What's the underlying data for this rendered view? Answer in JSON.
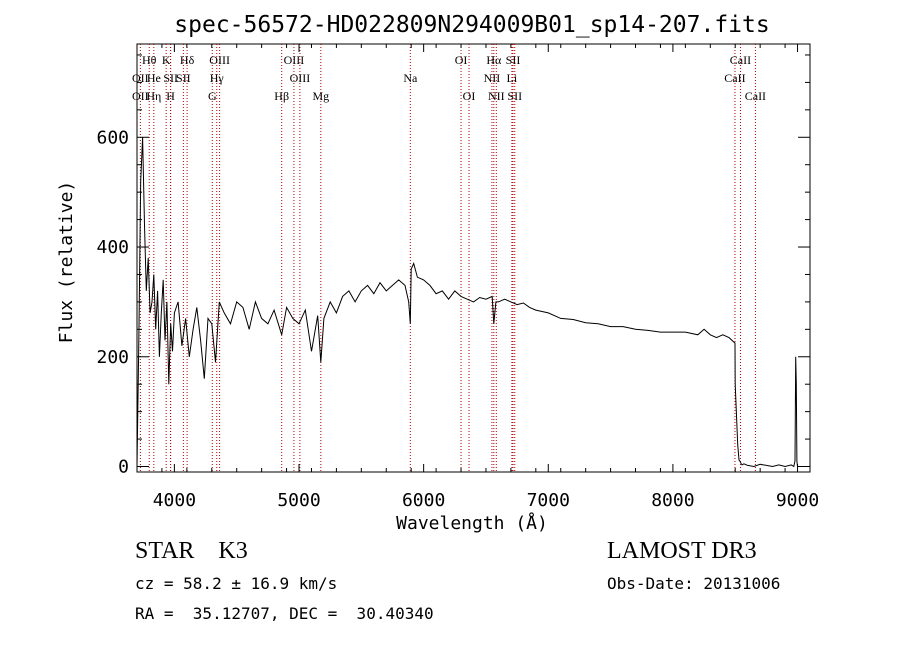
{
  "chart_data": {
    "type": "line",
    "title": "spec-56572-HD022809N294009B01_sp14-207.fits",
    "xlabel": "Wavelength (Å)",
    "ylabel": "Flux (relative)",
    "xlim": [
      3700,
      9100
    ],
    "ylim": [
      -10,
      770
    ],
    "xticks": [
      4000,
      5000,
      6000,
      7000,
      8000,
      9000
    ],
    "yticks": [
      0,
      200,
      400,
      600
    ],
    "series": [
      {
        "name": "flux",
        "x": [
          3700,
          3715,
          3730,
          3745,
          3760,
          3775,
          3790,
          3805,
          3820,
          3835,
          3850,
          3865,
          3880,
          3895,
          3910,
          3925,
          3940,
          3955,
          3970,
          3985,
          4000,
          4030,
          4060,
          4090,
          4120,
          4150,
          4180,
          4210,
          4240,
          4270,
          4300,
          4330,
          4360,
          4400,
          4450,
          4500,
          4550,
          4600,
          4650,
          4700,
          4750,
          4800,
          4861,
          4900,
          4950,
          5000,
          5050,
          5100,
          5150,
          5175,
          5200,
          5250,
          5300,
          5350,
          5400,
          5450,
          5500,
          5550,
          5600,
          5650,
          5700,
          5750,
          5800,
          5850,
          5880,
          5893,
          5900,
          5920,
          5950,
          6000,
          6050,
          6100,
          6150,
          6200,
          6250,
          6300,
          6350,
          6400,
          6450,
          6500,
          6550,
          6563,
          6580,
          6600,
          6650,
          6700,
          6750,
          6800,
          6850,
          6900,
          7000,
          7100,
          7200,
          7300,
          7400,
          7500,
          7600,
          7700,
          7800,
          7900,
          8000,
          8100,
          8200,
          8250,
          8300,
          8350,
          8400,
          8450,
          8498,
          8500,
          8520,
          8530,
          8542,
          8548,
          8555,
          8570,
          8600,
          8650,
          8700,
          8750,
          8800,
          8850,
          8900,
          8950,
          8970,
          8980,
          8985,
          8990,
          8995,
          9000
        ],
        "values": [
          0,
          240,
          520,
          600,
          440,
          320,
          380,
          280,
          300,
          350,
          250,
          320,
          200,
          280,
          340,
          230,
          300,
          150,
          260,
          210,
          280,
          300,
          220,
          270,
          200,
          250,
          290,
          230,
          160,
          270,
          260,
          190,
          300,
          280,
          260,
          300,
          290,
          250,
          300,
          270,
          260,
          285,
          240,
          290,
          270,
          260,
          285,
          210,
          275,
          190,
          270,
          300,
          280,
          310,
          320,
          300,
          320,
          330,
          315,
          335,
          320,
          330,
          340,
          330,
          300,
          260,
          360,
          370,
          345,
          340,
          330,
          315,
          320,
          305,
          320,
          310,
          305,
          300,
          308,
          305,
          310,
          260,
          300,
          300,
          305,
          300,
          295,
          298,
          290,
          285,
          280,
          270,
          268,
          262,
          260,
          255,
          255,
          250,
          248,
          245,
          245,
          245,
          240,
          250,
          240,
          235,
          240,
          235,
          225,
          150,
          40,
          12,
          8,
          5,
          3,
          5,
          2,
          0,
          4,
          2,
          0,
          3,
          0,
          3,
          0,
          10,
          200,
          150,
          10,
          0
        ]
      }
    ],
    "lines": [
      {
        "label": "OII",
        "x": 3727,
        "row": 1
      },
      {
        "label": "OII",
        "x": 3727,
        "row": 2
      },
      {
        "label": "Hθ",
        "x": 3798,
        "row": 0
      },
      {
        "label": "He",
        "x": 3835,
        "row": 1
      },
      {
        "label": "Hη",
        "x": 3835,
        "row": 2
      },
      {
        "label": "K",
        "x": 3934,
        "row": 0
      },
      {
        "label": "SII",
        "x": 3970,
        "row": 1
      },
      {
        "label": "H",
        "x": 3969,
        "row": 2
      },
      {
        "label": "Hδ",
        "x": 4102,
        "row": 0
      },
      {
        "label": "SII",
        "x": 4072,
        "row": 1
      },
      {
        "label": "OIII",
        "x": 4363,
        "row": 0
      },
      {
        "label": "Hγ",
        "x": 4340,
        "row": 1
      },
      {
        "label": "G",
        "x": 4304,
        "row": 2
      },
      {
        "label": "Hβ",
        "x": 4861,
        "row": 2
      },
      {
        "label": "OIII",
        "x": 4959,
        "row": 0
      },
      {
        "label": "OIII",
        "x": 5007,
        "row": 1
      },
      {
        "label": "Mg",
        "x": 5175,
        "row": 2
      },
      {
        "label": "Na",
        "x": 5893,
        "row": 1
      },
      {
        "label": "OI",
        "x": 6300,
        "row": 0
      },
      {
        "label": "OI",
        "x": 6364,
        "row": 2
      },
      {
        "label": "Hα",
        "x": 6563,
        "row": 0
      },
      {
        "label": "NII",
        "x": 6548,
        "row": 1
      },
      {
        "label": "NII",
        "x": 6583,
        "row": 2
      },
      {
        "label": "SII",
        "x": 6717,
        "row": 0
      },
      {
        "label": "Li",
        "x": 6708,
        "row": 1
      },
      {
        "label": "SII",
        "x": 6731,
        "row": 2
      },
      {
        "label": "CaII",
        "x": 8542,
        "row": 0
      },
      {
        "label": "CaII",
        "x": 8498,
        "row": 1
      },
      {
        "label": "CaII",
        "x": 8662,
        "row": 2
      }
    ]
  },
  "info": {
    "class_line": "STAR    K3",
    "survey": "LAMOST DR3",
    "cz": "cz = 58.2 ± 16.9 km/s",
    "obs_date": "Obs-Date: 20131006",
    "radec": "RA =  35.12707, DEC =  30.40340"
  }
}
